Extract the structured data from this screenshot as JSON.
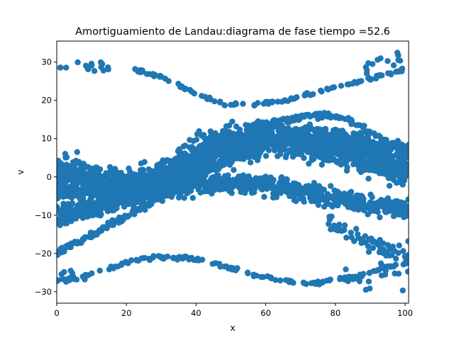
{
  "chart_data": {
    "type": "scatter",
    "title": "Amortiguamiento de Landau:diagrama de fase  tiempo =52.6",
    "xlabel": "x",
    "ylabel": "v",
    "xlim": [
      0,
      101
    ],
    "ylim": [
      -33,
      35.5
    ],
    "xticks": [
      0,
      20,
      40,
      60,
      80,
      100
    ],
    "yticks": [
      -30,
      -20,
      -10,
      0,
      10,
      20,
      30
    ],
    "grid": false,
    "legend": "none",
    "color": "#1f77b4",
    "bands": [
      {
        "x_start": 0,
        "x_end": 101,
        "center": [
          1,
          0,
          -2,
          -3,
          -2,
          0,
          3,
          6,
          8,
          9,
          10,
          10,
          9,
          8,
          7,
          5,
          3,
          2
        ],
        "spread": 4.5,
        "count": 1800
      },
      {
        "x_start": 0,
        "x_end": 101,
        "center": [
          -10,
          -9,
          -8,
          -6,
          -5,
          -4,
          -3,
          -2,
          -1.5,
          -1.5,
          -2,
          -3,
          -4,
          -5,
          -6,
          -7,
          -8,
          -8.5
        ],
        "spread": 2.5,
        "count": 900
      },
      {
        "x_start": 0,
        "x_end": 101,
        "center": [
          -5,
          -4,
          -3,
          -2,
          -1,
          0,
          1,
          3,
          5,
          7,
          9,
          10,
          11,
          11,
          10,
          9,
          8,
          7
        ],
        "spread": 2.0,
        "count": 500
      },
      {
        "x_start": 22,
        "x_end": 100,
        "center": [
          28,
          26,
          22,
          19,
          19,
          20,
          22,
          24,
          26,
          28
        ],
        "spread": 0.4,
        "count": 120
      },
      {
        "x_start": 0,
        "x_end": 101,
        "center": [
          -27,
          -26,
          -24,
          -22,
          -21,
          -21,
          -22,
          -24,
          -26,
          -27,
          -28,
          -27,
          -26,
          -24,
          -22
        ],
        "spread": 0.5,
        "count": 150
      },
      {
        "x_start": 0,
        "x_end": 55,
        "center": [
          -20,
          -17,
          -14,
          -11,
          -8,
          -5,
          -2,
          1,
          4,
          6
        ],
        "spread": 0.8,
        "count": 200
      },
      {
        "x_start": 55,
        "x_end": 101,
        "center": [
          13,
          14,
          15,
          16,
          16,
          15,
          12,
          9,
          7
        ],
        "spread": 0.7,
        "count": 130
      },
      {
        "x_start": 78,
        "x_end": 101,
        "center": [
          -12,
          -14,
          -16,
          -18,
          -20,
          -22
        ],
        "spread": 2.0,
        "count": 60
      }
    ],
    "clusters": [
      {
        "x": [
          5,
          15
        ],
        "y": [
          27.5,
          30.5
        ],
        "count": 15
      },
      {
        "x": [
          88,
          101
        ],
        "y": [
          27,
          32.5
        ],
        "count": 14
      },
      {
        "x": [
          0,
          3
        ],
        "y": [
          28,
          30
        ],
        "count": 3
      },
      {
        "x": [
          80,
          101
        ],
        "y": [
          -30,
          -24
        ],
        "count": 16
      },
      {
        "x": [
          0,
          12
        ],
        "y": [
          -27.5,
          -24.5
        ],
        "count": 12
      },
      {
        "x": [
          92,
          101
        ],
        "y": [
          -26,
          -16
        ],
        "count": 14
      }
    ]
  }
}
